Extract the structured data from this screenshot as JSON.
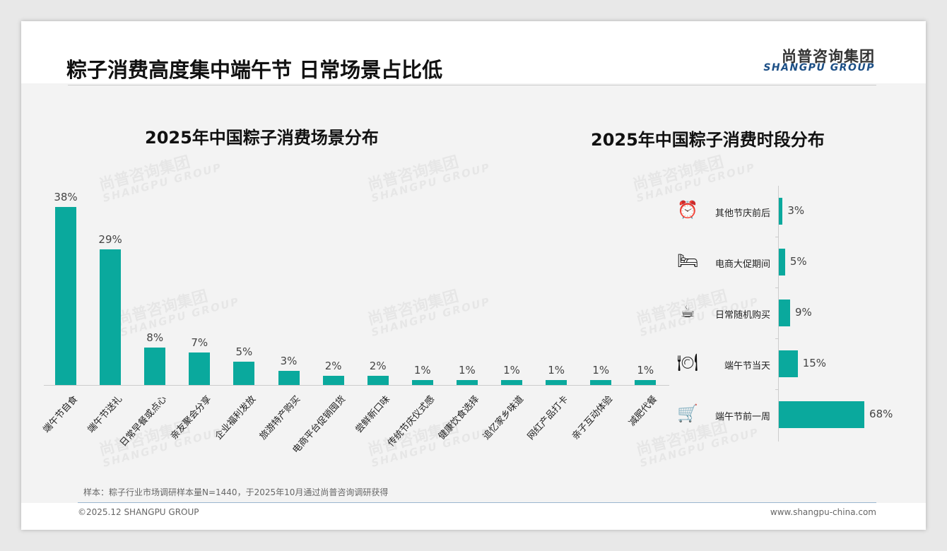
{
  "header": {
    "title": "粽子消费高度集中端午节 日常场景占比低",
    "logo_cn": "尚普咨询集团",
    "logo_en": "SHANGPU GROUP"
  },
  "chart_data": [
    {
      "type": "bar",
      "title": "2025年中国粽子消费场景分布",
      "categories": [
        "端午节自食",
        "端午节送礼",
        "日常早餐或点心",
        "亲友聚会分享",
        "企业福利发放",
        "旅游特产购买",
        "电商平台促销囤货",
        "尝鲜新口味",
        "传统节庆仪式感",
        "健康饮食选择",
        "追忆家乡味道",
        "网红产品打卡",
        "亲子互动体验",
        "减肥代餐"
      ],
      "values": [
        38,
        29,
        8,
        7,
        5,
        3,
        2,
        2,
        1,
        1,
        1,
        1,
        1,
        1
      ],
      "labels": [
        "38%",
        "29%",
        "8%",
        "7%",
        "5%",
        "3%",
        "2%",
        "2%",
        "1%",
        "1%",
        "1%",
        "1%",
        "1%",
        "1%"
      ],
      "ylim": [
        0,
        40
      ],
      "unit": "%"
    },
    {
      "type": "bar",
      "orientation": "horizontal",
      "title": "2025年中国粽子消费时段分布",
      "categories": [
        "其他节庆前后",
        "电商大促期间",
        "日常随机购买",
        "端午节当天",
        "端午节前一周"
      ],
      "icons": [
        "alarm-clock-icon",
        "bed-icon",
        "coffee-cup-icon",
        "plate-cutlery-icon",
        "shopping-cart-icon"
      ],
      "values": [
        3,
        5,
        9,
        15,
        68
      ],
      "labels": [
        "3%",
        "5%",
        "9%",
        "15%",
        "68%"
      ],
      "xlim": [
        0,
        70
      ],
      "unit": "%"
    }
  ],
  "watermark": {
    "cn": "尚普咨询集团",
    "en": "SHANGPU GROUP"
  },
  "footer": {
    "note": "样本：粽子行业市场调研样本量N=1440，于2025年10月通过尚普咨询调研获得",
    "copyright": "©2025.12 SHANGPU GROUP",
    "url": "www.shangpu-china.com"
  },
  "colors": {
    "bar": "#0aa99d"
  }
}
